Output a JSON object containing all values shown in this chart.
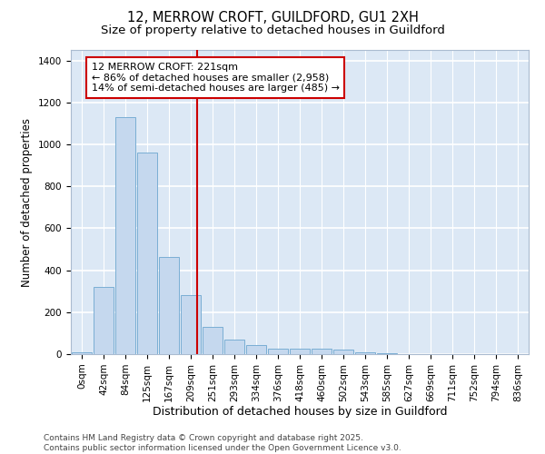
{
  "title_line1": "12, MERROW CROFT, GUILDFORD, GU1 2XH",
  "title_line2": "Size of property relative to detached houses in Guildford",
  "xlabel": "Distribution of detached houses by size in Guildford",
  "ylabel": "Number of detached properties",
  "bar_color": "#c5d8ee",
  "bar_edge_color": "#7aaed4",
  "background_color": "#dce8f5",
  "fig_background_color": "#ffffff",
  "grid_color": "#ffffff",
  "categories": [
    "0sqm",
    "42sqm",
    "84sqm",
    "125sqm",
    "167sqm",
    "209sqm",
    "251sqm",
    "293sqm",
    "334sqm",
    "376sqm",
    "418sqm",
    "460sqm",
    "502sqm",
    "543sqm",
    "585sqm",
    "627sqm",
    "669sqm",
    "711sqm",
    "752sqm",
    "794sqm",
    "836sqm"
  ],
  "values": [
    10,
    320,
    1130,
    960,
    465,
    280,
    128,
    68,
    42,
    25,
    25,
    25,
    20,
    8,
    3,
    2,
    1,
    1,
    0,
    0,
    0
  ],
  "ylim": [
    0,
    1450
  ],
  "yticks": [
    0,
    200,
    400,
    600,
    800,
    1000,
    1200,
    1400
  ],
  "vline_color": "#cc0000",
  "annotation_text": "12 MERROW CROFT: 221sqm\n← 86% of detached houses are smaller (2,958)\n14% of semi-detached houses are larger (485) →",
  "annotation_box_color": "#cc0000",
  "footnote": "Contains HM Land Registry data © Crown copyright and database right 2025.\nContains public sector information licensed under the Open Government Licence v3.0.",
  "title_fontsize": 10.5,
  "subtitle_fontsize": 9.5,
  "xlabel_fontsize": 9,
  "ylabel_fontsize": 8.5,
  "tick_fontsize": 7.5,
  "annotation_fontsize": 8,
  "footnote_fontsize": 6.5
}
